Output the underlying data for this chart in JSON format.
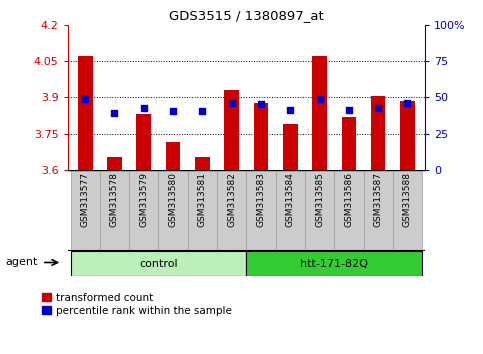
{
  "title": "GDS3515 / 1380897_at",
  "samples": [
    "GSM313577",
    "GSM313578",
    "GSM313579",
    "GSM313580",
    "GSM313581",
    "GSM313582",
    "GSM313583",
    "GSM313584",
    "GSM313585",
    "GSM313586",
    "GSM313587",
    "GSM313588"
  ],
  "red_values": [
    4.07,
    3.655,
    3.83,
    3.715,
    3.655,
    3.93,
    3.875,
    3.79,
    4.07,
    3.82,
    3.905,
    3.885
  ],
  "blue_values": [
    3.895,
    3.835,
    3.858,
    3.845,
    3.842,
    3.875,
    3.872,
    3.847,
    3.893,
    3.848,
    3.856,
    3.876
  ],
  "ymin": 3.6,
  "ymax": 4.2,
  "yticks": [
    3.6,
    3.75,
    3.9,
    4.05,
    4.2
  ],
  "right_yticks": [
    0,
    25,
    50,
    75,
    100
  ],
  "right_ytick_labels": [
    "0",
    "25",
    "50",
    "75",
    "100%"
  ],
  "groups": [
    {
      "label": "control",
      "start": 0,
      "end": 5,
      "facecolor": "#c8f5c0"
    },
    {
      "label": "htt-171-82Q",
      "start": 6,
      "end": 11,
      "facecolor": "#44dd44"
    }
  ],
  "agent_label": "agent",
  "bar_color": "#CC0000",
  "dot_color": "#0000CC",
  "left_tick_color": "#CC0000",
  "right_tick_color": "#0000BB",
  "grid_color": "#000000",
  "legend_red_label": "transformed count",
  "legend_blue_label": "percentile rank within the sample",
  "bar_width": 0.5,
  "xtick_bg_color": "#cccccc",
  "xtick_border_color": "#999999",
  "group_border_color": "#000000",
  "control_color": "#bbf0bb",
  "htt_color": "#33cc33"
}
